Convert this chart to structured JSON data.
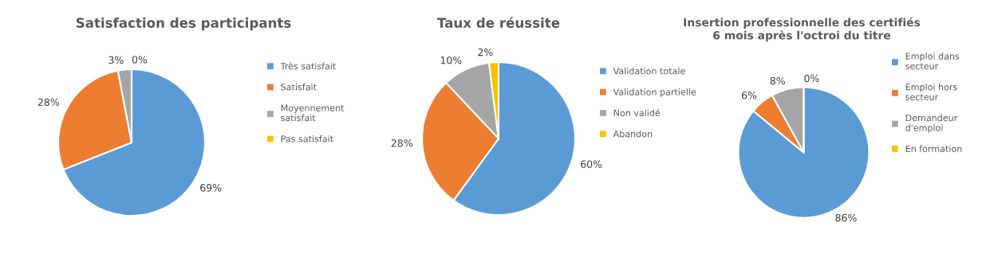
{
  "chart_data": [
    {
      "type": "pie",
      "title": "Satisfaction des participants",
      "categories": [
        "Très satisfait",
        "Satisfait",
        "Moyennement\nsatisfait",
        "Pas satisfait"
      ],
      "values": [
        69,
        28,
        3,
        0
      ],
      "value_labels": [
        "69%",
        "28%",
        "3%",
        "0%"
      ],
      "colors": [
        "#5b9bd5",
        "#ed7d31",
        "#a5a5a5",
        "#ffc000"
      ],
      "legend": "right"
    },
    {
      "type": "pie",
      "title": "Taux de réussite",
      "categories": [
        "Validation totale",
        "Validation partielle",
        "Non validé",
        "Abandon"
      ],
      "values": [
        60,
        28,
        10,
        2
      ],
      "value_labels": [
        "60%",
        "28%",
        "10%",
        "2%"
      ],
      "colors": [
        "#5b9bd5",
        "#ed7d31",
        "#a5a5a5",
        "#ffc000"
      ],
      "legend": "right"
    },
    {
      "type": "pie",
      "title": "Insertion professionnelle des certifiés\n6 mois après l'octroi du titre",
      "categories": [
        "Emploi dans\nsecteur",
        "Emploi hors\nsecteur",
        "Demandeur\nd'emploi",
        "En formation"
      ],
      "values": [
        86,
        6,
        8,
        0
      ],
      "value_labels": [
        "86%",
        "6%",
        "8%",
        "0%"
      ],
      "colors": [
        "#5b9bd5",
        "#ed7d31",
        "#a5a5a5",
        "#ffc000"
      ],
      "legend": "right"
    }
  ]
}
